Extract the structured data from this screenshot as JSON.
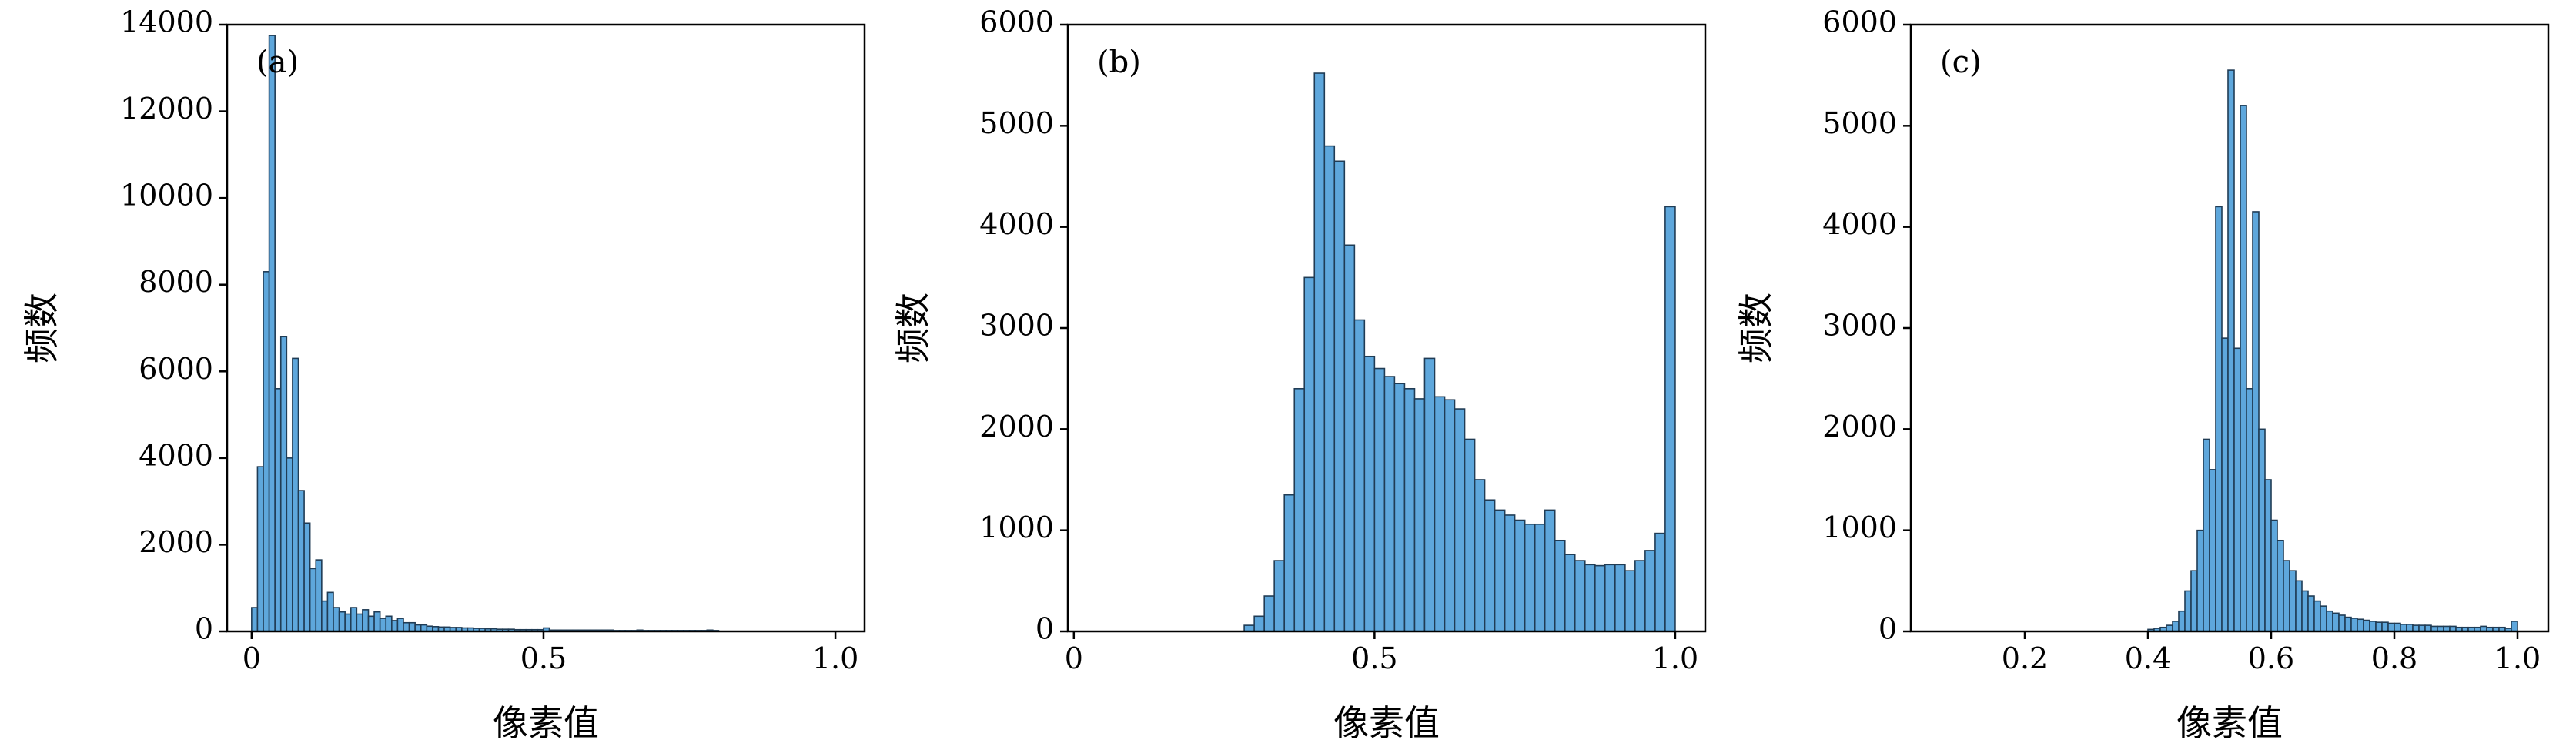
{
  "chart_data": [
    {
      "type": "histogram",
      "annotation": "(a)",
      "xlabel": "像素值",
      "ylabel": "频数",
      "color": "#5ea7dc",
      "edgecolor": "#203c55",
      "bins": [
        0,
        0.01,
        0.02,
        0.03,
        0.04,
        0.05,
        0.06,
        0.07,
        0.08,
        0.09,
        0.1,
        0.11,
        0.12,
        0.13,
        0.14,
        0.15,
        0.16,
        0.17,
        0.18,
        0.19,
        0.2,
        0.21,
        0.22,
        0.23,
        0.24,
        0.25,
        0.26,
        0.27,
        0.28,
        0.29,
        0.3,
        0.31,
        0.32,
        0.33,
        0.34,
        0.35,
        0.36,
        0.37,
        0.38,
        0.39,
        0.4,
        0.41,
        0.42,
        0.43,
        0.44,
        0.45,
        0.46,
        0.47,
        0.48,
        0.49,
        0.5,
        0.51,
        0.52,
        0.53,
        0.54,
        0.55,
        0.56,
        0.57,
        0.58,
        0.59,
        0.6,
        0.61,
        0.62,
        0.63,
        0.64,
        0.65,
        0.66,
        0.67,
        0.68,
        0.69,
        0.7,
        0.71,
        0.72,
        0.73,
        0.74,
        0.75,
        0.76,
        0.77,
        0.78,
        0.79,
        0.8
      ],
      "values": [
        550,
        3800,
        8300,
        13750,
        5600,
        6800,
        4000,
        6300,
        3250,
        2500,
        1450,
        1650,
        700,
        900,
        550,
        450,
        400,
        550,
        400,
        500,
        350,
        450,
        300,
        350,
        250,
        300,
        200,
        200,
        150,
        150,
        120,
        110,
        100,
        100,
        90,
        90,
        80,
        80,
        70,
        70,
        60,
        60,
        50,
        50,
        50,
        40,
        40,
        40,
        40,
        40,
        80,
        30,
        30,
        30,
        30,
        30,
        30,
        30,
        30,
        30,
        30,
        30,
        20,
        20,
        20,
        20,
        30,
        20,
        20,
        20,
        20,
        20,
        20,
        20,
        20,
        20,
        20,
        20,
        30,
        20
      ],
      "xlim": [
        -0.042,
        1.05
      ],
      "xticks": [
        0,
        0.5,
        {
          "value": 1,
          "label": "1.0"
        }
      ],
      "ylim": [
        0,
        14000
      ],
      "yticks": [
        0,
        2000,
        4000,
        6000,
        8000,
        10000,
        12000,
        14000
      ]
    },
    {
      "type": "histogram",
      "annotation": "(b)",
      "xlabel": "像素值",
      "ylabel": "频数",
      "color": "#5ea7dc",
      "edgecolor": "#203c55",
      "bins": [
        0.2833,
        0.3,
        0.3167,
        0.3333,
        0.35,
        0.3667,
        0.3833,
        0.4,
        0.4167,
        0.4333,
        0.45,
        0.4667,
        0.4833,
        0.5,
        0.5167,
        0.5333,
        0.55,
        0.5667,
        0.5833,
        0.6,
        0.6167,
        0.6333,
        0.65,
        0.6667,
        0.6833,
        0.7,
        0.7167,
        0.7333,
        0.75,
        0.7667,
        0.7833,
        0.8,
        0.8167,
        0.8333,
        0.85,
        0.8667,
        0.8833,
        0.9,
        0.9167,
        0.9333,
        0.95,
        0.9667,
        0.9833,
        1
      ],
      "values": [
        60,
        150,
        350,
        700,
        1350,
        2400,
        3500,
        5520,
        4800,
        4650,
        3820,
        3080,
        2720,
        2600,
        2520,
        2450,
        2400,
        2300,
        2700,
        2320,
        2290,
        2200,
        1900,
        1500,
        1300,
        1200,
        1150,
        1100,
        1060,
        1060,
        1200,
        900,
        760,
        700,
        660,
        650,
        660,
        660,
        600,
        700,
        800,
        970,
        4200
      ],
      "xlim": [
        -0.01,
        1.05
      ],
      "xticks": [
        0,
        0.5,
        {
          "value": 1,
          "label": "1.0"
        }
      ],
      "ylim": [
        0,
        6000
      ],
      "yticks": [
        0,
        1000,
        2000,
        3000,
        4000,
        5000,
        6000
      ]
    },
    {
      "type": "histogram",
      "annotation": "(c)",
      "xlabel": "像素值",
      "ylabel": "频数",
      "color": "#5ea7dc",
      "edgecolor": "#203c55",
      "bins": [
        0.4,
        0.41,
        0.42,
        0.43,
        0.44,
        0.45,
        0.46,
        0.47,
        0.48,
        0.49,
        0.5,
        0.51,
        0.52,
        0.53,
        0.54,
        0.55,
        0.56,
        0.57,
        0.58,
        0.59,
        0.6,
        0.61,
        0.62,
        0.63,
        0.64,
        0.65,
        0.66,
        0.67,
        0.68,
        0.69,
        0.7,
        0.71,
        0.72,
        0.73,
        0.74,
        0.75,
        0.76,
        0.77,
        0.78,
        0.79,
        0.8,
        0.81,
        0.82,
        0.83,
        0.84,
        0.85,
        0.86,
        0.87,
        0.88,
        0.89,
        0.9,
        0.91,
        0.92,
        0.93,
        0.94,
        0.95,
        0.96,
        0.97,
        0.98,
        0.99,
        1
      ],
      "values": [
        20,
        30,
        40,
        60,
        100,
        200,
        400,
        600,
        1000,
        1900,
        1600,
        4200,
        2900,
        5550,
        2800,
        5200,
        2400,
        4150,
        2000,
        1500,
        1100,
        900,
        700,
        600,
        500,
        400,
        350,
        300,
        250,
        200,
        180,
        160,
        140,
        130,
        120,
        110,
        100,
        90,
        90,
        80,
        80,
        70,
        70,
        60,
        60,
        60,
        50,
        50,
        50,
        50,
        40,
        40,
        40,
        40,
        50,
        40,
        40,
        40,
        30,
        100
      ],
      "xlim": [
        0.015,
        1.05
      ],
      "xticks": [
        0.2,
        0.4,
        0.6,
        0.8,
        {
          "value": 1,
          "label": "1.0"
        }
      ],
      "ylim": [
        0,
        6000
      ],
      "yticks": [
        0,
        1000,
        2000,
        3000,
        4000,
        5000,
        6000
      ]
    }
  ]
}
